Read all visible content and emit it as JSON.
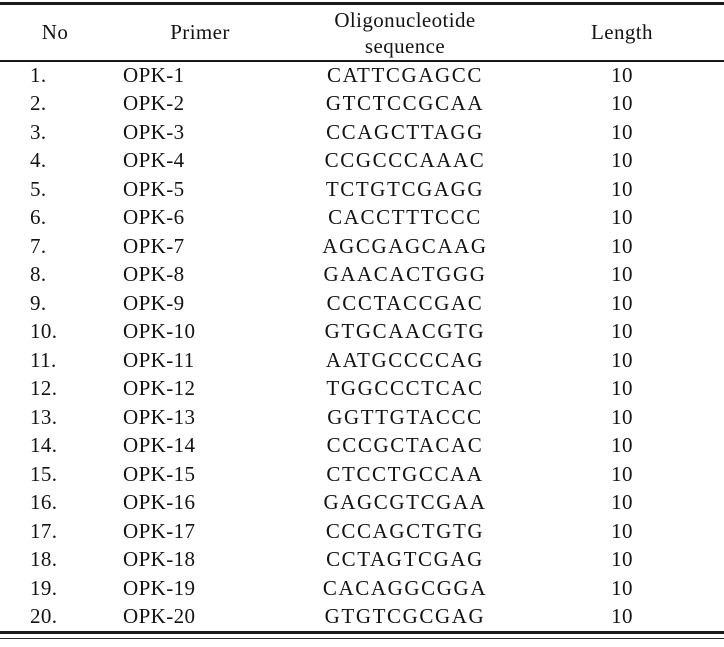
{
  "table": {
    "header": {
      "no": "No",
      "primer": "Primer",
      "sequence": "Oligonucleotide sequence",
      "length": "Length"
    },
    "rows": [
      {
        "no": "1.",
        "primer": "OPK-1",
        "sequence": "CATTCGAGCC",
        "length": "10"
      },
      {
        "no": "2.",
        "primer": "OPK-2",
        "sequence": "GTCTCCGCAA",
        "length": "10"
      },
      {
        "no": "3.",
        "primer": "OPK-3",
        "sequence": "CCAGCTTAGG",
        "length": "10"
      },
      {
        "no": "4.",
        "primer": "OPK-4",
        "sequence": "CCGCCCAAAC",
        "length": "10"
      },
      {
        "no": "5.",
        "primer": "OPK-5",
        "sequence": "TCTGTCGAGG",
        "length": "10"
      },
      {
        "no": "6.",
        "primer": "OPK-6",
        "sequence": "CACCTTTCCC",
        "length": "10"
      },
      {
        "no": "7.",
        "primer": "OPK-7",
        "sequence": "AGCGAGCAAG",
        "length": "10"
      },
      {
        "no": "8.",
        "primer": "OPK-8",
        "sequence": "GAACACTGGG",
        "length": "10"
      },
      {
        "no": "9.",
        "primer": "OPK-9",
        "sequence": "CCCTACCGAC",
        "length": "10"
      },
      {
        "no": "10.",
        "primer": "OPK-10",
        "sequence": "GTGCAACGTG",
        "length": "10"
      },
      {
        "no": "11.",
        "primer": "OPK-11",
        "sequence": "AATGCCCCAG",
        "length": "10"
      },
      {
        "no": "12.",
        "primer": "OPK-12",
        "sequence": "TGGCCCTCAC",
        "length": "10"
      },
      {
        "no": "13.",
        "primer": "OPK-13",
        "sequence": "GGTTGTACCC",
        "length": "10"
      },
      {
        "no": "14.",
        "primer": "OPK-14",
        "sequence": "CCCGCTACAC",
        "length": "10"
      },
      {
        "no": "15.",
        "primer": "OPK-15",
        "sequence": "CTCCTGCCAA",
        "length": "10"
      },
      {
        "no": "16.",
        "primer": "OPK-16",
        "sequence": "GAGCGTCGAA",
        "length": "10"
      },
      {
        "no": "17.",
        "primer": "OPK-17",
        "sequence": "CCCAGCTGTG",
        "length": "10"
      },
      {
        "no": "18.",
        "primer": "OPK-18",
        "sequence": "CCTAGTCGAG",
        "length": "10"
      },
      {
        "no": "19.",
        "primer": "OPK-19",
        "sequence": "CACAGGCGGA",
        "length": "10"
      },
      {
        "no": "20.",
        "primer": "OPK-20",
        "sequence": "GTGTCGCGAG",
        "length": "10"
      }
    ]
  }
}
